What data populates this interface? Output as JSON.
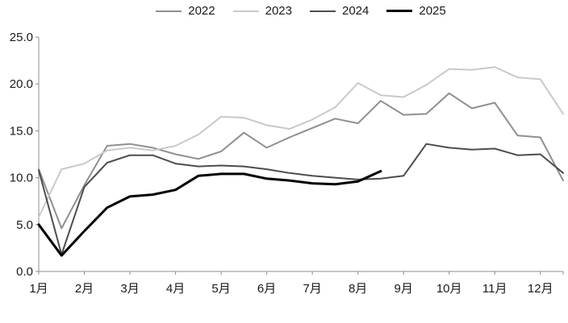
{
  "chart_data": {
    "type": "line",
    "x_unit": "half_month",
    "xlim": [
      1,
      12.5
    ],
    "ylim": [
      0,
      25
    ],
    "grid": false,
    "legend_position": "top",
    "axis_color": "#8c8c8c",
    "x": [
      1,
      1.5,
      2,
      2.5,
      3,
      3.5,
      4,
      4.5,
      5,
      5.5,
      6,
      6.5,
      7,
      7.5,
      8,
      8.5,
      9,
      9.5,
      10,
      10.5,
      11,
      11.5,
      12,
      12.5
    ],
    "x_ticks": [
      1,
      2,
      3,
      4,
      5,
      6,
      7,
      8,
      9,
      10,
      11,
      12
    ],
    "x_tick_labels": [
      "1月",
      "2月",
      "3月",
      "4月",
      "5月",
      "6月",
      "7月",
      "8月",
      "9月",
      "10月",
      "11月",
      "12月"
    ],
    "y_ticks": [
      "0.0",
      "5.0",
      "10.0",
      "15.0",
      "20.0",
      "25.0"
    ],
    "series": [
      {
        "name": "2022",
        "color": "#8f8f8f",
        "width": 2,
        "values": [
          10.9,
          4.6,
          9.2,
          13.4,
          13.6,
          13.2,
          12.5,
          12.0,
          12.8,
          14.8,
          13.2,
          14.3,
          15.3,
          16.3,
          15.8,
          18.2,
          16.7,
          16.8,
          19.0,
          17.4,
          18.0,
          14.5,
          14.3,
          9.7
        ]
      },
      {
        "name": "2023",
        "color": "#c9c9c9",
        "width": 2,
        "values": [
          5.8,
          10.9,
          11.5,
          12.9,
          13.2,
          12.9,
          13.4,
          14.6,
          16.5,
          16.4,
          15.6,
          15.2,
          16.2,
          17.5,
          20.1,
          18.8,
          18.6,
          19.9,
          21.6,
          21.5,
          21.8,
          20.7,
          20.5,
          16.8
        ]
      },
      {
        "name": "2024",
        "color": "#4d4d4d",
        "width": 2,
        "values": [
          10.8,
          1.8,
          9.0,
          11.6,
          12.4,
          12.4,
          11.5,
          11.2,
          11.3,
          11.2,
          10.9,
          10.5,
          10.2,
          10.0,
          9.8,
          9.9,
          10.2,
          13.6,
          13.2,
          13.0,
          13.1,
          12.4,
          12.5,
          10.5
        ]
      },
      {
        "name": "2025",
        "color": "#000000",
        "width": 3,
        "values": [
          5.0,
          1.7,
          4.3,
          6.8,
          8.0,
          8.2,
          8.7,
          10.2,
          10.4,
          10.4,
          9.9,
          9.7,
          9.4,
          9.3,
          9.6,
          10.7
        ]
      }
    ]
  }
}
